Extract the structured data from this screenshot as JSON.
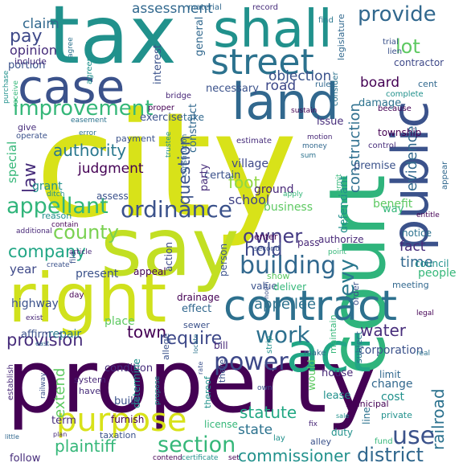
{
  "palette": {
    "purple": "#440154",
    "indigo": "#3b528b",
    "blue": "#31688e",
    "teal": "#21918c",
    "green": "#35b779",
    "lime": "#90d743",
    "yellow": "#d8e219"
  },
  "words": [
    {
      "text": "property",
      "color": "#440154"
    },
    {
      "text": "city",
      "color": "#d8e219"
    },
    {
      "text": "tax",
      "color": "#21918c"
    },
    {
      "text": "say",
      "color": "#c2df23"
    },
    {
      "text": "court",
      "color": "#2fb47c"
    },
    {
      "text": "right",
      "color": "#d0e11c"
    },
    {
      "text": "land",
      "color": "#31688e"
    },
    {
      "text": "case",
      "color": "#3b528b"
    },
    {
      "text": "shall",
      "color": "#21918c"
    },
    {
      "text": "street",
      "color": "#2c728e"
    },
    {
      "text": "contract",
      "color": "#2d708e"
    },
    {
      "text": "act",
      "color": "#21a685"
    },
    {
      "text": "purpose",
      "color": "#d8e219"
    },
    {
      "text": "public",
      "color": "#3b528b"
    },
    {
      "text": "building",
      "color": "#31688e"
    },
    {
      "text": "ordinance",
      "color": "#3b528b"
    },
    {
      "text": "provide",
      "color": "#31688e"
    },
    {
      "text": "improvement",
      "color": "#35b779"
    },
    {
      "text": "appellant",
      "color": "#31b57b"
    },
    {
      "text": "county",
      "color": "#7ad151"
    },
    {
      "text": "power",
      "color": "#3e4989"
    },
    {
      "text": "work",
      "color": "#2d708e"
    },
    {
      "text": "section",
      "color": "#35b779"
    },
    {
      "text": "construction",
      "color": "#2e6f8e"
    },
    {
      "text": "lot",
      "color": "#5ec962"
    },
    {
      "text": "owner",
      "color": "#443a83"
    },
    {
      "text": "hold",
      "color": "#3e4989"
    },
    {
      "text": "levy",
      "color": "#2a788e"
    },
    {
      "text": "use",
      "color": "#3b528b"
    },
    {
      "text": "district",
      "color": "#31688e"
    },
    {
      "text": "pay",
      "color": "#3e4989"
    },
    {
      "text": "authority",
      "color": "#2a788e"
    },
    {
      "text": "question",
      "color": "#3b528b"
    },
    {
      "text": "law",
      "color": "#472d7b"
    },
    {
      "text": "foot",
      "color": "#90d743"
    },
    {
      "text": "company",
      "color": "#21a685"
    },
    {
      "text": "require",
      "color": "#3e4989"
    },
    {
      "text": "town",
      "color": "#440154"
    },
    {
      "text": "plaintiff",
      "color": "#35b779"
    },
    {
      "text": "water",
      "color": "#472d7b"
    },
    {
      "text": "provision",
      "color": "#472d7b"
    },
    {
      "text": "commissioner",
      "color": "#21918c"
    },
    {
      "text": "statute",
      "color": "#22a884"
    },
    {
      "text": "railroad",
      "color": "#2c728e"
    },
    {
      "text": "board",
      "color": "#440154"
    },
    {
      "text": "evidence",
      "color": "#31688e"
    },
    {
      "text": "time",
      "color": "#31688e"
    },
    {
      "text": "fact",
      "color": "#472d7b"
    },
    {
      "text": "claim",
      "color": "#31688e"
    },
    {
      "text": "opinion",
      "color": "#472d7b"
    },
    {
      "text": "assessment",
      "color": "#31688e"
    },
    {
      "text": "objection",
      "color": "#3b528b"
    },
    {
      "text": "road",
      "color": "#3e4989"
    },
    {
      "text": "judgment",
      "color": "#440154"
    },
    {
      "text": "school",
      "color": "#414487"
    },
    {
      "text": "appellee",
      "color": "#2c728e"
    },
    {
      "text": "state",
      "color": "#2c728e"
    },
    {
      "text": "year",
      "color": "#3e4989"
    },
    {
      "text": "special",
      "color": "#35b779"
    },
    {
      "text": "grant",
      "color": "#21918c"
    },
    {
      "text": "highway",
      "color": "#3b528b"
    },
    {
      "text": "present",
      "color": "#3b528b"
    },
    {
      "text": "repair",
      "color": "#2a788e"
    },
    {
      "text": "place",
      "color": "#5ec962"
    },
    {
      "text": "affirm",
      "color": "#3b528b"
    },
    {
      "text": "extend",
      "color": "#5ec962"
    },
    {
      "text": "business",
      "color": "#5ec962"
    },
    {
      "text": "benefit",
      "color": "#5ec962"
    },
    {
      "text": "corporation",
      "color": "#3b528b"
    },
    {
      "text": "township",
      "color": "#440154"
    },
    {
      "text": "village",
      "color": "#3e4989"
    },
    {
      "text": "construct",
      "color": "#31688e"
    },
    {
      "text": "certain",
      "color": "#3b528b"
    },
    {
      "text": "party",
      "color": "#472d7b"
    },
    {
      "text": "defendant",
      "color": "#21918c"
    },
    {
      "text": "ground",
      "color": "#482878"
    },
    {
      "text": "general",
      "color": "#31688e"
    },
    {
      "text": "necessary",
      "color": "#3b528b"
    },
    {
      "text": "exercise",
      "color": "#3b528b"
    },
    {
      "text": "interest",
      "color": "#3b528b"
    },
    {
      "text": "take",
      "color": "#31688e"
    },
    {
      "text": "issue",
      "color": "#472d7b"
    },
    {
      "text": "damage",
      "color": "#2c728e"
    },
    {
      "text": "contractor",
      "color": "#3e4989"
    },
    {
      "text": "premise",
      "color": "#3b528b"
    },
    {
      "text": "authorize",
      "color": "#482878"
    },
    {
      "text": "notice",
      "color": "#2c728e"
    },
    {
      "text": "council",
      "color": "#21918c"
    },
    {
      "text": "people",
      "color": "#35b779"
    },
    {
      "text": "meeting",
      "color": "#31688e"
    },
    {
      "text": "sewer",
      "color": "#3b528b"
    },
    {
      "text": "drainage",
      "color": "#440154"
    },
    {
      "text": "effect",
      "color": "#31688e"
    },
    {
      "text": "appeal",
      "color": "#440154"
    },
    {
      "text": "action",
      "color": "#3e4989"
    },
    {
      "text": "person",
      "color": "#3b528b"
    },
    {
      "text": "value",
      "color": "#3b528b"
    },
    {
      "text": "deliver",
      "color": "#35b779"
    },
    {
      "text": "show",
      "color": "#5ec962"
    },
    {
      "text": "enter",
      "color": "#440154"
    },
    {
      "text": "pass",
      "color": "#482878"
    },
    {
      "text": "way",
      "color": "#35b779"
    },
    {
      "text": "change",
      "color": "#31688e"
    },
    {
      "text": "limit",
      "color": "#31688e"
    },
    {
      "text": "cost",
      "color": "#21918c"
    },
    {
      "text": "lease",
      "color": "#21918c"
    },
    {
      "text": "house",
      "color": "#482878"
    },
    {
      "text": "bill",
      "color": "#482878"
    },
    {
      "text": "there",
      "color": "#3b528b"
    },
    {
      "text": "would",
      "color": "#5ec962"
    },
    {
      "text": "line",
      "color": "#2c728e"
    },
    {
      "text": "duty",
      "color": "#21918c"
    },
    {
      "text": "build",
      "color": "#3b528b"
    },
    {
      "text": "term",
      "color": "#472d7b"
    },
    {
      "text": "follow",
      "color": "#472d7b"
    },
    {
      "text": "license",
      "color": "#35b779"
    },
    {
      "text": "condition",
      "color": "#472d7b"
    },
    {
      "text": "determine",
      "color": "#21918c"
    },
    {
      "text": "furnish",
      "color": "#440154"
    },
    {
      "text": "alley",
      "color": "#3b528b"
    },
    {
      "text": "make",
      "color": "#31688e"
    },
    {
      "text": "subject",
      "color": "#2c728e"
    },
    {
      "text": "order",
      "color": "#3b528b"
    },
    {
      "text": "maintain",
      "color": "#35b779"
    },
    {
      "text": "system",
      "color": "#482878"
    },
    {
      "text": "have",
      "color": "#472d7b"
    },
    {
      "text": "establish",
      "color": "#482878"
    },
    {
      "text": "thereof",
      "color": "#21918c"
    },
    {
      "text": "private",
      "color": "#21918c"
    },
    {
      "text": "municipal",
      "color": "#440154"
    },
    {
      "text": "taxation",
      "color": "#3b528b"
    },
    {
      "text": "contend",
      "color": "#440154"
    },
    {
      "text": "certificate",
      "color": "#21918c"
    },
    {
      "text": "fund",
      "color": "#35b779"
    },
    {
      "text": "portion",
      "color": "#3b528b"
    },
    {
      "text": "include",
      "color": "#472d7b"
    },
    {
      "text": "material",
      "color": "#31688e"
    },
    {
      "text": "record",
      "color": "#472d7b"
    },
    {
      "text": "legislature",
      "color": "#31688e"
    },
    {
      "text": "agree",
      "color": "#2c728e"
    },
    {
      "text": "agreement",
      "color": "#21918c"
    },
    {
      "text": "find",
      "color": "#2a788e"
    },
    {
      "text": "trial",
      "color": "#3b528b"
    },
    {
      "text": "lien",
      "color": "#3b528b"
    },
    {
      "text": "cent",
      "color": "#31688e"
    },
    {
      "text": "complete",
      "color": "#21918c"
    },
    {
      "text": "because",
      "color": "#440154"
    },
    {
      "text": "consider",
      "color": "#2c728e"
    },
    {
      "text": "rule",
      "color": "#31688e"
    },
    {
      "text": "bridge",
      "color": "#482878"
    },
    {
      "text": "proper",
      "color": "#440154"
    },
    {
      "text": "purchase",
      "color": "#21918c"
    },
    {
      "text": "receive",
      "color": "#35b779"
    },
    {
      "text": "easement",
      "color": "#2c728e"
    },
    {
      "text": "give",
      "color": "#472d7b"
    },
    {
      "text": "operate",
      "color": "#3b528b"
    },
    {
      "text": "error",
      "color": "#2c728e"
    },
    {
      "text": "payment",
      "color": "#3b528b"
    },
    {
      "text": "estimate",
      "color": "#472d7b"
    },
    {
      "text": "sustain",
      "color": "#440154"
    },
    {
      "text": "money",
      "color": "#31688e"
    },
    {
      "text": "motion",
      "color": "#482878"
    },
    {
      "text": "control",
      "color": "#472d7b"
    },
    {
      "text": "sum",
      "color": "#2c728e"
    },
    {
      "text": "trustee",
      "color": "#21918c"
    },
    {
      "text": "constitution",
      "color": "#31688e"
    },
    {
      "text": "permit",
      "color": "#35b779"
    },
    {
      "text": "apply",
      "color": "#35b779"
    },
    {
      "text": "assess",
      "color": "#3b528b"
    },
    {
      "text": "ditch",
      "color": "#21918c"
    },
    {
      "text": "additional",
      "color": "#482878"
    },
    {
      "text": "reason",
      "color": "#21918c"
    },
    {
      "text": "contain",
      "color": "#440154"
    },
    {
      "text": "entitle",
      "color": "#440154"
    },
    {
      "text": "appear",
      "color": "#31688e"
    },
    {
      "text": "second",
      "color": "#3b528b"
    },
    {
      "text": "point",
      "color": "#35b779"
    },
    {
      "text": "article",
      "color": "#482878"
    },
    {
      "text": "create",
      "color": "#3b528b"
    },
    {
      "text": "file",
      "color": "#3b528b"
    },
    {
      "text": "day",
      "color": "#440154"
    },
    {
      "text": "exist",
      "color": "#482878"
    },
    {
      "text": "allege",
      "color": "#3b528b"
    },
    {
      "text": "east",
      "color": "#31688e"
    },
    {
      "text": "legal",
      "color": "#440154"
    },
    {
      "text": "real",
      "color": "#2c728e"
    },
    {
      "text": "north",
      "color": "#3b528b"
    },
    {
      "text": "strip",
      "color": "#21918c"
    },
    {
      "text": "locate",
      "color": "#2c728e"
    },
    {
      "text": "railway",
      "color": "#3b528b"
    },
    {
      "text": "rate",
      "color": "#3b528b"
    },
    {
      "text": "propose",
      "color": "#21918c"
    },
    {
      "text": "fix",
      "color": "#482878"
    },
    {
      "text": "lay",
      "color": "#21918c"
    },
    {
      "text": "plan",
      "color": "#472d7b"
    },
    {
      "text": "little",
      "color": "#31688e"
    },
    {
      "text": "own",
      "color": "#3b528b"
    },
    {
      "text": "set",
      "color": "#440154"
    },
    {
      "text": "sale",
      "color": "#21918c"
    }
  ]
}
